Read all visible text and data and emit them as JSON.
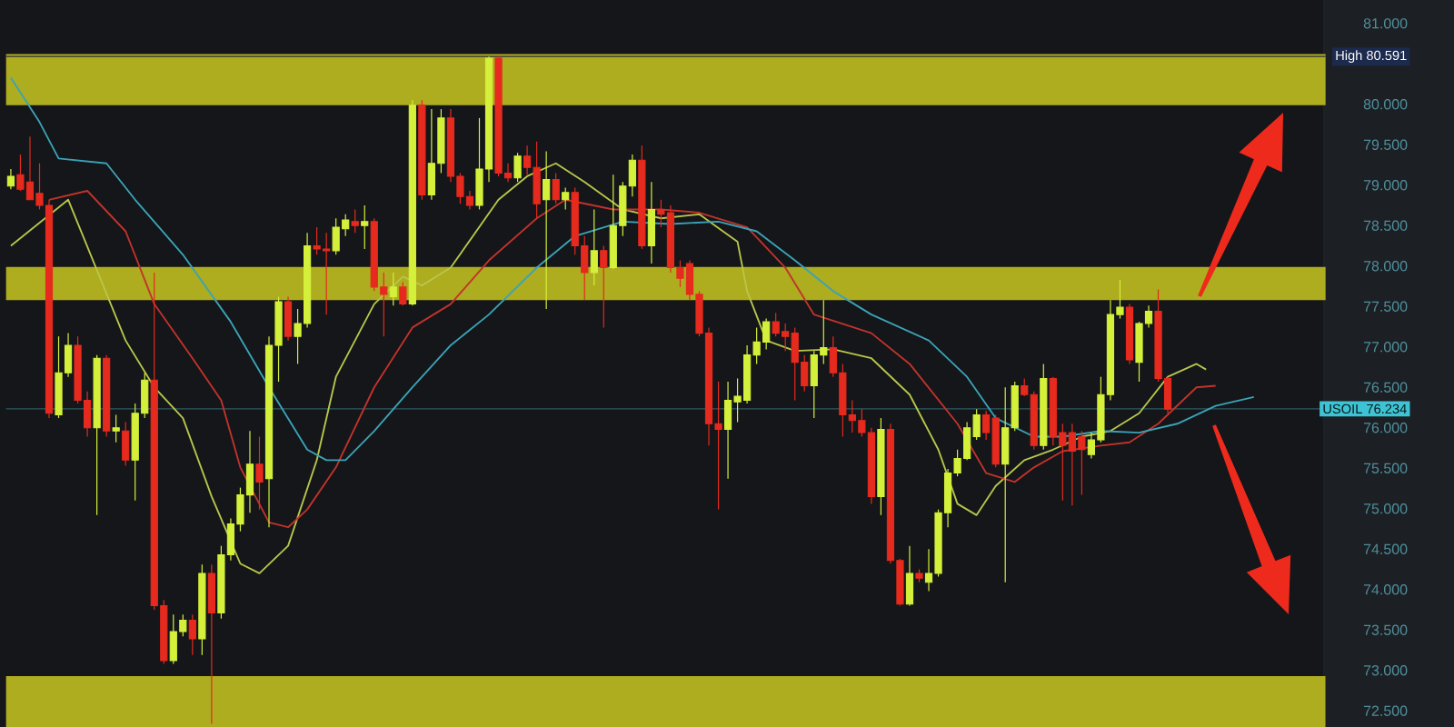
{
  "chart_data": {
    "type": "candlestick",
    "categories": [
      null,
      null,
      null,
      null,
      null,
      null,
      null,
      null,
      null,
      null,
      null,
      null,
      null,
      null,
      null,
      null,
      null,
      null,
      null,
      null,
      null,
      null,
      null,
      null,
      null,
      null,
      null,
      null,
      null,
      null,
      null,
      null,
      null,
      null,
      null,
      null,
      null,
      null,
      null,
      null,
      null,
      null,
      null,
      null,
      null,
      null,
      null,
      null,
      null,
      null,
      null,
      null,
      null,
      null,
      null,
      null,
      null,
      null,
      null,
      null,
      null,
      null,
      null,
      null,
      null,
      null,
      null,
      null,
      null,
      null,
      null,
      null,
      null,
      null,
      null,
      null,
      null,
      null,
      null,
      null,
      null,
      null,
      null,
      null,
      null,
      null,
      null,
      null,
      null,
      null,
      null,
      null,
      null,
      null,
      null,
      null,
      null,
      null,
      null,
      null,
      null,
      null,
      null,
      null,
      null,
      null,
      null,
      null,
      null,
      null,
      null,
      null,
      null,
      null,
      null,
      null,
      null,
      null,
      null,
      null,
      null,
      null,
      null,
      null,
      null,
      null,
      null,
      null,
      null,
      null,
      null,
      null,
      null,
      null,
      null,
      null,
      null,
      null
    ],
    "ohlc": [
      [
        78.99,
        79.2,
        78.95,
        79.11
      ],
      [
        79.13,
        79.38,
        78.93,
        78.95
      ],
      [
        79.04,
        79.6,
        78.82,
        78.82
      ],
      [
        78.9,
        79.27,
        78.7,
        78.75
      ],
      [
        78.75,
        78.82,
        76.12,
        76.18
      ],
      [
        76.16,
        77.13,
        76.12,
        76.68
      ],
      [
        76.68,
        77.17,
        76.63,
        77.02
      ],
      [
        77.02,
        77.13,
        76.3,
        76.34
      ],
      [
        76.34,
        76.45,
        75.89,
        76.0
      ],
      [
        76.0,
        76.9,
        74.92,
        76.86
      ],
      [
        76.86,
        76.9,
        75.89,
        75.96
      ],
      [
        75.96,
        76.16,
        75.82,
        76.0
      ],
      [
        75.96,
        76.07,
        75.53,
        75.6
      ],
      [
        75.6,
        76.3,
        75.1,
        76.18
      ],
      [
        76.18,
        76.68,
        76.12,
        76.59
      ],
      [
        76.59,
        77.92,
        73.75,
        73.8
      ],
      [
        73.8,
        73.87,
        73.08,
        73.12
      ],
      [
        73.12,
        73.69,
        73.08,
        73.48
      ],
      [
        73.48,
        73.69,
        73.42,
        73.62
      ],
      [
        73.62,
        73.69,
        73.19,
        73.39
      ],
      [
        73.39,
        74.31,
        73.19,
        74.2
      ],
      [
        74.2,
        74.31,
        72.34,
        73.71
      ],
      [
        73.71,
        74.54,
        73.64,
        74.43
      ],
      [
        74.43,
        74.88,
        74.36,
        74.81
      ],
      [
        74.81,
        75.26,
        74.72,
        75.17
      ],
      [
        75.17,
        75.96,
        74.95,
        75.55
      ],
      [
        75.55,
        75.89,
        74.99,
        75.33
      ],
      [
        75.37,
        77.13,
        74.77,
        77.02
      ],
      [
        77.02,
        77.62,
        76.57,
        77.56
      ],
      [
        77.56,
        77.62,
        77.08,
        77.13
      ],
      [
        77.13,
        77.47,
        76.79,
        77.29
      ],
      [
        77.29,
        78.41,
        77.24,
        78.25
      ],
      [
        78.25,
        78.48,
        78.14,
        78.21
      ],
      [
        78.21,
        78.41,
        77.4,
        78.19
      ],
      [
        78.19,
        78.59,
        78.14,
        78.48
      ],
      [
        78.46,
        78.64,
        78.37,
        78.57
      ],
      [
        78.55,
        78.7,
        78.41,
        78.5
      ],
      [
        78.5,
        78.75,
        78.21,
        78.55
      ],
      [
        78.55,
        78.59,
        77.69,
        77.74
      ],
      [
        77.74,
        77.92,
        77.13,
        77.65
      ],
      [
        77.62,
        77.92,
        77.51,
        77.74
      ],
      [
        77.74,
        77.8,
        77.51,
        77.53
      ],
      [
        77.53,
        80.05,
        77.51,
        79.99
      ],
      [
        79.99,
        80.05,
        78.82,
        78.88
      ],
      [
        78.88,
        79.94,
        78.82,
        79.27
      ],
      [
        79.27,
        79.94,
        79.15,
        79.83
      ],
      [
        79.83,
        79.94,
        79.04,
        79.11
      ],
      [
        79.11,
        79.15,
        78.77,
        78.86
      ],
      [
        78.86,
        78.93,
        78.7,
        78.75
      ],
      [
        78.75,
        79.83,
        78.7,
        79.2
      ],
      [
        79.2,
        80.59,
        79.04,
        80.57
      ],
      [
        80.57,
        80.59,
        79.11,
        79.15
      ],
      [
        79.15,
        79.27,
        79.04,
        79.09
      ],
      [
        79.09,
        79.4,
        79.04,
        79.36
      ],
      [
        79.36,
        79.49,
        79.13,
        79.22
      ],
      [
        79.22,
        79.54,
        78.59,
        78.77
      ],
      [
        78.82,
        79.42,
        77.47,
        79.07
      ],
      [
        79.07,
        79.15,
        78.77,
        78.82
      ],
      [
        78.82,
        78.97,
        78.7,
        78.91
      ],
      [
        78.91,
        78.97,
        78.14,
        78.25
      ],
      [
        78.25,
        78.37,
        77.58,
        77.92
      ],
      [
        77.92,
        78.7,
        77.76,
        78.19
      ],
      [
        78.19,
        78.25,
        77.24,
        77.98
      ],
      [
        77.98,
        79.13,
        77.96,
        78.5
      ],
      [
        78.5,
        79.04,
        78.37,
        78.99
      ],
      [
        78.99,
        79.38,
        78.86,
        79.31
      ],
      [
        79.31,
        79.49,
        78.21,
        78.25
      ],
      [
        78.25,
        79.04,
        78.03,
        78.7
      ],
      [
        78.7,
        78.82,
        78.48,
        78.64
      ],
      [
        78.66,
        78.75,
        77.92,
        77.98
      ],
      [
        77.98,
        78.07,
        77.74,
        77.85
      ],
      [
        78.03,
        78.07,
        77.58,
        77.65
      ],
      [
        77.65,
        77.69,
        77.13,
        77.17
      ],
      [
        77.17,
        77.24,
        75.78,
        76.05
      ],
      [
        76.05,
        76.57,
        74.99,
        75.98
      ],
      [
        75.98,
        76.57,
        75.37,
        76.34
      ],
      [
        76.32,
        76.61,
        76.07,
        76.39
      ],
      [
        76.34,
        77.02,
        76.3,
        76.9
      ],
      [
        76.9,
        77.24,
        76.79,
        77.06
      ],
      [
        77.06,
        77.35,
        76.97,
        77.31
      ],
      [
        77.31,
        77.42,
        77.13,
        77.17
      ],
      [
        77.19,
        77.29,
        76.95,
        77.13
      ],
      [
        77.17,
        77.24,
        76.34,
        76.81
      ],
      [
        76.81,
        76.9,
        76.45,
        76.52
      ],
      [
        76.52,
        76.95,
        76.12,
        76.9
      ],
      [
        76.9,
        77.58,
        76.79,
        76.99
      ],
      [
        76.99,
        77.13,
        76.63,
        76.68
      ],
      [
        76.68,
        76.79,
        75.89,
        76.16
      ],
      [
        76.16,
        76.34,
        75.94,
        76.09
      ],
      [
        76.09,
        76.23,
        75.89,
        75.94
      ],
      [
        75.94,
        76.0,
        75.06,
        75.15
      ],
      [
        75.15,
        76.12,
        74.92,
        75.98
      ],
      [
        75.98,
        76.05,
        74.32,
        74.36
      ],
      [
        74.36,
        74.38,
        73.8,
        73.82
      ],
      [
        73.82,
        74.54,
        73.8,
        74.2
      ],
      [
        74.2,
        74.25,
        74.09,
        74.14
      ],
      [
        74.09,
        74.5,
        73.98,
        74.2
      ],
      [
        74.2,
        74.99,
        74.16,
        74.95
      ],
      [
        74.95,
        75.49,
        74.77,
        75.44
      ],
      [
        75.44,
        75.73,
        75.4,
        75.62
      ],
      [
        75.62,
        76.07,
        75.6,
        76.0
      ],
      [
        75.89,
        76.23,
        75.85,
        76.16
      ],
      [
        76.16,
        76.21,
        75.85,
        75.94
      ],
      [
        76.12,
        76.16,
        75.51,
        75.55
      ],
      [
        75.55,
        76.5,
        74.09,
        76.0
      ],
      [
        76.0,
        76.57,
        75.96,
        76.52
      ],
      [
        76.52,
        76.61,
        76.39,
        76.41
      ],
      [
        76.41,
        76.45,
        75.73,
        75.78
      ],
      [
        75.78,
        76.79,
        75.73,
        76.61
      ],
      [
        76.61,
        76.63,
        75.78,
        75.89
      ],
      [
        75.94,
        76.05,
        75.1,
        75.78
      ],
      [
        75.94,
        76.05,
        75.04,
        75.71
      ],
      [
        75.89,
        75.96,
        75.17,
        75.73
      ],
      [
        75.67,
        75.94,
        75.62,
        75.85
      ],
      [
        75.85,
        76.63,
        75.82,
        76.41
      ],
      [
        76.41,
        77.58,
        76.34,
        77.4
      ],
      [
        77.4,
        77.83,
        77.35,
        77.49
      ],
      [
        77.49,
        77.53,
        76.79,
        76.84
      ],
      [
        76.81,
        77.31,
        76.57,
        77.29
      ],
      [
        77.29,
        77.51,
        77.24,
        77.44
      ],
      [
        77.44,
        77.71,
        76.57,
        76.61
      ],
      [
        76.61,
        76.63,
        76.18,
        76.23
      ],
      null,
      null,
      null,
      null,
      null,
      null,
      null,
      null,
      null,
      null,
      null,
      null,
      null,
      null,
      null,
      null
    ],
    "colors": [
      "#d4f03a",
      "#e62a1e",
      "#e62a1e",
      "#e62a1e",
      "#e62a1e",
      "#d4f03a",
      "#d4f03a",
      "#e62a1e",
      "#e62a1e",
      "#d4f03a",
      "#e62a1e",
      "#d4f03a",
      "#e62a1e",
      "#d4f03a",
      "#d4f03a",
      "#e62a1e",
      "#e62a1e",
      "#d4f03a",
      "#d4f03a",
      "#e62a1e",
      "#d4f03a",
      "#e62a1e",
      "#d4f03a",
      "#d4f03a",
      "#d4f03a",
      "#d4f03a",
      "#e62a1e",
      "#d4f03a",
      "#d4f03a",
      "#e62a1e",
      "#d4f03a",
      "#d4f03a",
      "#e62a1e",
      "#e62a1e",
      "#d4f03a",
      "#d4f03a",
      "#e62a1e",
      "#d4f03a",
      "#e62a1e",
      "#e62a1e",
      "#d4f03a",
      "#e62a1e",
      "#d4f03a",
      "#e62a1e",
      "#d4f03a",
      "#d4f03a",
      "#e62a1e",
      "#e62a1e",
      "#e62a1e",
      "#d4f03a",
      "#d4f03a",
      "#e62a1e",
      "#e62a1e",
      "#d4f03a",
      "#e62a1e",
      "#e62a1e",
      "#d4f03a",
      "#e62a1e",
      "#d4f03a",
      "#e62a1e",
      "#e62a1e",
      "#d4f03a",
      "#e62a1e",
      "#d4f03a",
      "#d4f03a",
      "#d4f03a",
      "#e62a1e",
      "#d4f03a",
      "#e62a1e",
      "#e62a1e",
      "#e62a1e",
      "#e62a1e",
      "#e62a1e",
      "#e62a1e",
      "#e62a1e",
      "#d4f03a",
      "#d4f03a",
      "#d4f03a",
      "#d4f03a",
      "#d4f03a",
      "#e62a1e",
      "#e62a1e",
      "#e62a1e",
      "#e62a1e",
      "#d4f03a",
      "#d4f03a",
      "#e62a1e",
      "#e62a1e",
      "#e62a1e",
      "#e62a1e",
      "#e62a1e",
      "#d4f03a",
      "#e62a1e",
      "#e62a1e",
      "#d4f03a",
      "#e62a1e",
      "#d4f03a",
      "#d4f03a",
      "#d4f03a",
      "#d4f03a",
      "#d4f03a",
      "#d4f03a",
      "#e62a1e",
      "#e62a1e",
      "#d4f03a",
      "#d4f03a",
      "#e62a1e",
      "#e62a1e",
      "#d4f03a",
      "#e62a1e",
      "#e62a1e",
      "#e62a1e",
      "#e62a1e",
      "#d4f03a",
      "#d4f03a",
      "#d4f03a",
      "#d4f03a",
      "#e62a1e",
      "#d4f03a",
      "#d4f03a",
      "#e62a1e",
      "#e62a1e",
      null,
      null,
      null,
      null,
      null,
      null,
      null,
      null,
      null,
      null,
      null,
      null,
      null,
      null,
      null,
      null
    ],
    "series": [
      {
        "type": "line",
        "color": "#b9c64a",
        "values": [
          78.25,
          null,
          null,
          null,
          null,
          null,
          78.82,
          null,
          null,
          null,
          null,
          null,
          77.08,
          null,
          null,
          76.5,
          null,
          null,
          76.12,
          null,
          null,
          75.15,
          null,
          null,
          74.32,
          null,
          74.2,
          null,
          null,
          74.54,
          null,
          null,
          75.6,
          null,
          76.63,
          null,
          null,
          null,
          77.53,
          null,
          null,
          77.87,
          null,
          77.76,
          null,
          null,
          77.98,
          null,
          null,
          null,
          null,
          78.82,
          null,
          null,
          79.11,
          null,
          null,
          79.27,
          null,
          null,
          79.04,
          null,
          null,
          null,
          78.7,
          null,
          null,
          null,
          78.59,
          null,
          null,
          null,
          78.64,
          null,
          null,
          null,
          78.3,
          77.69,
          null,
          77.08,
          null,
          null,
          76.95,
          null,
          null,
          null,
          76.97,
          null,
          null,
          null,
          76.86,
          null,
          null,
          null,
          76.41,
          null,
          null,
          75.73,
          null,
          75.06,
          null,
          74.92,
          null,
          75.28,
          null,
          null,
          75.6,
          null,
          null,
          75.73,
          null,
          null,
          75.89,
          null,
          null,
          75.96,
          null,
          null,
          76.18,
          null,
          null,
          76.63,
          null,
          null,
          76.79,
          76.72,
          null,
          null,
          null,
          null,
          null,
          null,
          null,
          null,
          null,
          null,
          null,
          null
        ]
      },
      {
        "type": "line",
        "color": "#c2332b",
        "values": [
          null,
          null,
          null,
          null,
          78.82,
          null,
          null,
          null,
          78.93,
          null,
          null,
          null,
          78.43,
          null,
          null,
          77.53,
          null,
          null,
          null,
          76.86,
          null,
          null,
          76.34,
          null,
          75.51,
          null,
          null,
          74.83,
          null,
          74.77,
          null,
          74.99,
          null,
          null,
          75.51,
          null,
          null,
          null,
          76.5,
          null,
          null,
          null,
          77.24,
          null,
          null,
          null,
          77.53,
          null,
          null,
          null,
          78.07,
          null,
          null,
          null,
          null,
          78.59,
          null,
          null,
          78.82,
          null,
          null,
          null,
          null,
          78.7,
          null,
          null,
          null,
          null,
          78.7,
          null,
          null,
          null,
          78.66,
          null,
          null,
          null,
          null,
          78.48,
          null,
          null,
          null,
          77.98,
          null,
          null,
          77.4,
          null,
          null,
          null,
          null,
          null,
          77.17,
          null,
          null,
          null,
          76.79,
          null,
          null,
          null,
          null,
          76.05,
          null,
          null,
          75.44,
          null,
          null,
          75.33,
          null,
          75.51,
          null,
          null,
          75.71,
          null,
          null,
          null,
          75.78,
          null,
          null,
          75.82,
          null,
          null,
          76.05,
          null,
          null,
          null,
          76.5,
          null,
          76.52,
          null,
          null,
          null,
          null,
          null,
          null,
          null,
          null,
          null,
          null,
          null
        ]
      },
      {
        "type": "line",
        "color": "#3ba3b6",
        "values": [
          80.33,
          null,
          null,
          79.78,
          null,
          79.33,
          null,
          null,
          null,
          null,
          79.27,
          null,
          null,
          78.82,
          null,
          null,
          null,
          null,
          78.14,
          null,
          null,
          null,
          null,
          77.31,
          null,
          null,
          null,
          76.5,
          null,
          null,
          null,
          75.73,
          null,
          75.6,
          null,
          75.6,
          null,
          null,
          75.96,
          null,
          null,
          null,
          76.5,
          null,
          null,
          null,
          77.02,
          null,
          null,
          null,
          77.4,
          null,
          null,
          null,
          null,
          77.98,
          null,
          null,
          null,
          78.37,
          null,
          null,
          null,
          null,
          78.55,
          null,
          null,
          null,
          null,
          78.52,
          null,
          null,
          null,
          null,
          78.55,
          null,
          null,
          null,
          78.43,
          null,
          null,
          null,
          78.07,
          null,
          null,
          null,
          77.69,
          null,
          null,
          null,
          77.4,
          null,
          null,
          null,
          null,
          null,
          77.08,
          null,
          null,
          null,
          76.63,
          null,
          null,
          76.12,
          null,
          null,
          null,
          75.89,
          null,
          null,
          75.89,
          null,
          null,
          null,
          75.96,
          null,
          null,
          null,
          75.94,
          null,
          null,
          null,
          76.05,
          null,
          null,
          null,
          76.27,
          null,
          null,
          null,
          76.38,
          null,
          null,
          null,
          null,
          null,
          null,
          null
        ]
      }
    ],
    "ylim": [
      72.3,
      81.29
    ],
    "yticks": [
      {
        "value": 72.5,
        "label": "72.500"
      },
      {
        "value": 73,
        "label": "73.000"
      },
      {
        "value": 73.5,
        "label": "73.500"
      },
      {
        "value": 74,
        "label": "74.000"
      },
      {
        "value": 74.5,
        "label": "74.500"
      },
      {
        "value": 75,
        "label": "75.000"
      },
      {
        "value": 75.5,
        "label": "75.500"
      },
      {
        "value": 76,
        "label": "76.000"
      },
      {
        "value": 76.5,
        "label": "76.500"
      },
      {
        "value": 77,
        "label": "77.000"
      },
      {
        "value": 77.5,
        "label": "77.500"
      },
      {
        "value": 78,
        "label": "78.000"
      },
      {
        "value": 78.5,
        "label": "78.500"
      },
      {
        "value": 79,
        "label": "79.000"
      },
      {
        "value": 79.5,
        "label": "79.500"
      },
      {
        "value": 80,
        "label": "80.000"
      },
      {
        "value": 81,
        "label": "81.000"
      }
    ],
    "tick_labels": "y",
    "bands": [
      {
        "axis": "y",
        "from": 79.99,
        "to": 80.62,
        "color": "#aeac1f"
      },
      {
        "axis": "y",
        "from": 77.58,
        "to": 77.99,
        "color": "#aeac1f"
      },
      {
        "axis": "y",
        "from": 72.3,
        "to": 72.93,
        "color": "#aeac1f"
      }
    ],
    "ref_lines": [
      {
        "axis": "y",
        "value": 80.591,
        "label": "High 80.591",
        "color": "#2a2e3a"
      },
      {
        "axis": "y",
        "value": 76.234,
        "label": "USOIL 76.234",
        "color": "#2f5a63"
      }
    ]
  }
}
